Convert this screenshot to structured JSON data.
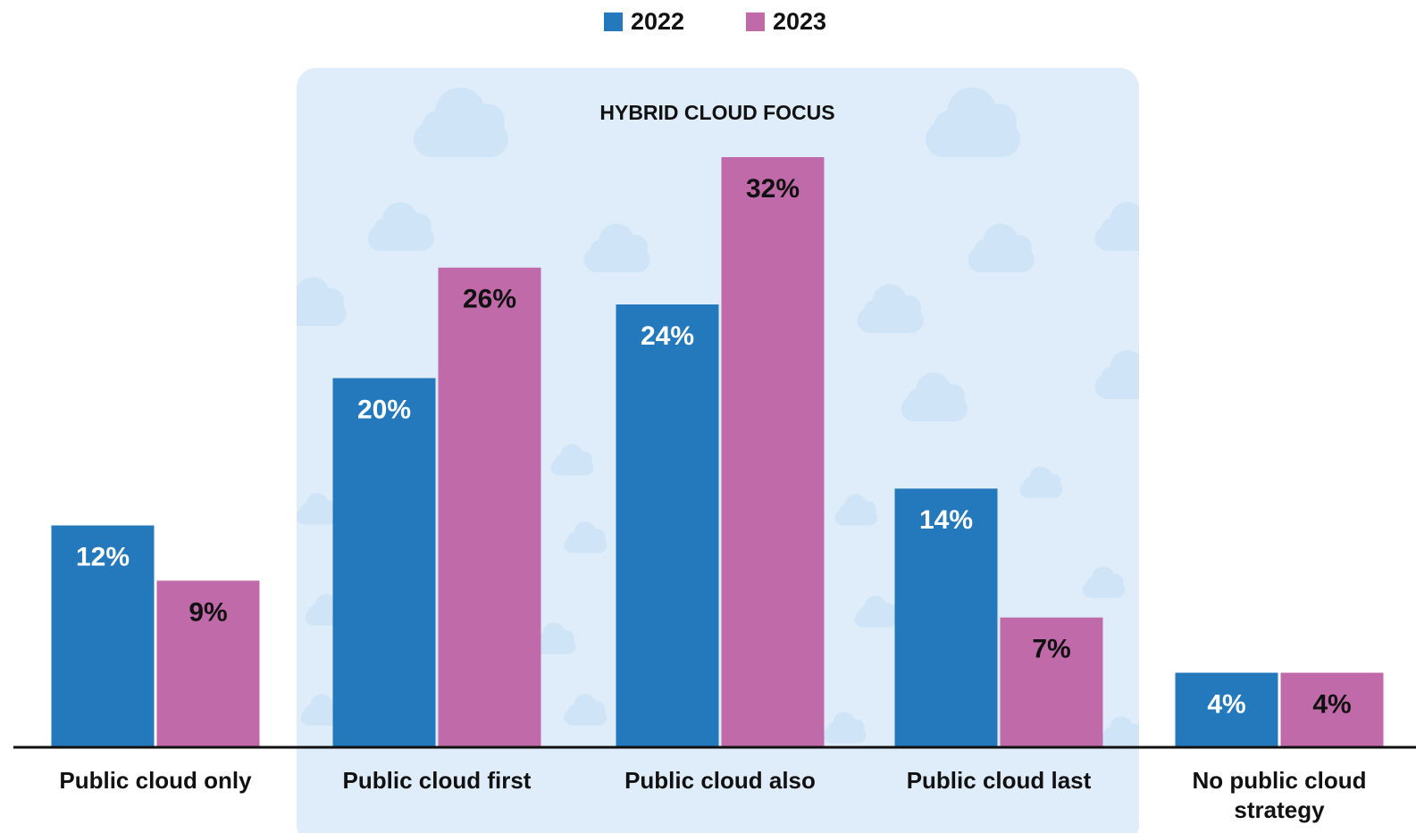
{
  "chart_data": {
    "type": "bar",
    "annotation": "HYBRID CLOUD FOCUS",
    "categories": [
      "Public cloud only",
      "Public cloud first",
      "Public cloud also",
      "Public cloud last",
      "No public cloud strategy"
    ],
    "series": [
      {
        "name": "2022",
        "color": "#2479bd",
        "values": [
          12,
          20,
          24,
          14,
          4
        ],
        "value_labels": [
          "12%",
          "20%",
          "24%",
          "14%",
          "4%"
        ]
      },
      {
        "name": "2023",
        "color": "#c06aa9",
        "values": [
          9,
          26,
          32,
          7,
          4
        ],
        "value_labels": [
          "9%",
          "26%",
          "32%",
          "7%",
          "4%"
        ]
      }
    ]
  }
}
